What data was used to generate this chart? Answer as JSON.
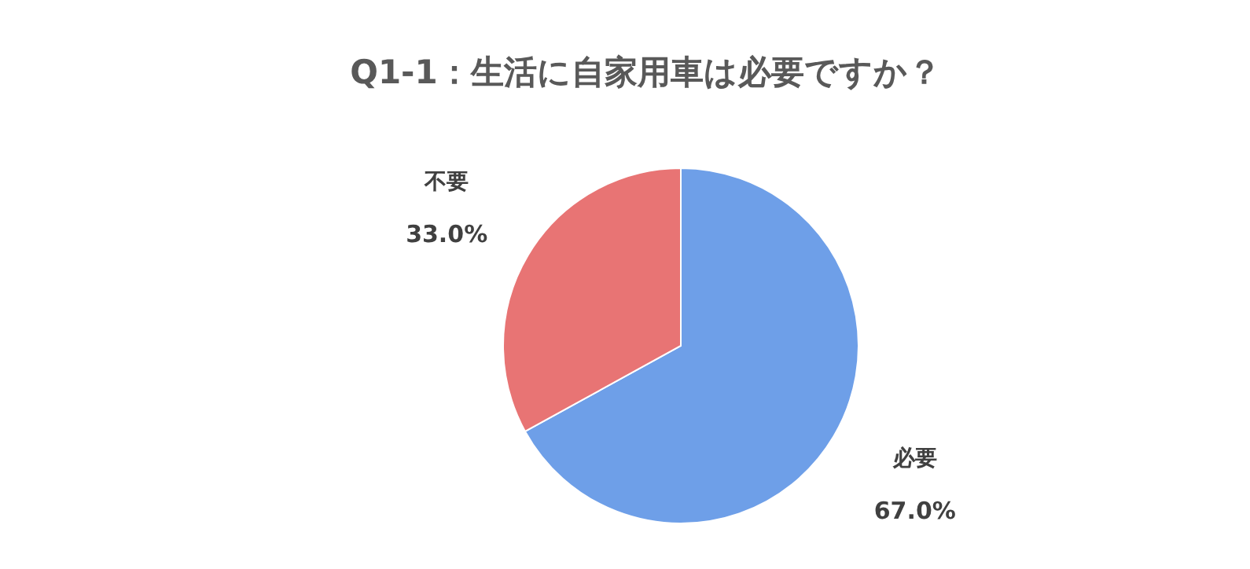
{
  "chart_data": {
    "type": "pie",
    "title": "Q1-1：生活に自家用車は必要ですか？",
    "categories": [
      "必要",
      "不要"
    ],
    "values": [
      67.0,
      33.0
    ],
    "colors": [
      "#6e9fe8",
      "#e87474"
    ],
    "value_labels": [
      "67.0%",
      "33.0%"
    ],
    "legend": false
  }
}
